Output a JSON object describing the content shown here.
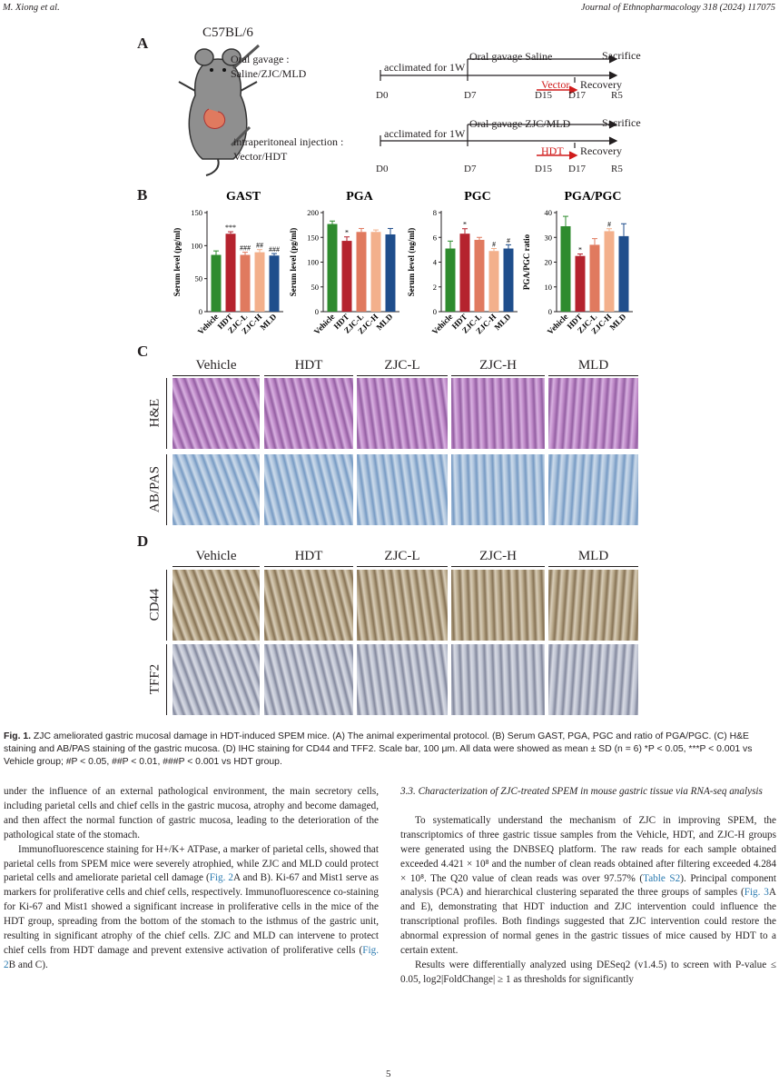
{
  "header": {
    "authors": "M. Xiong et al.",
    "journal": "Journal of Ethnopharmacology 318 (2024) 117075"
  },
  "panelA": {
    "letter": "A",
    "strain": "C57BL/6",
    "oral_gavage_label": "Oral gavage :",
    "oral_gavage_groups": "Saline/ZJC/MLD",
    "ip_label": "intraperitoneal injection :",
    "ip_groups": "Vector/HDT",
    "timeline1": {
      "acclimated": "acclimated for 1W",
      "gavage": "Oral gavage Saline",
      "sacrifice": "Sacrifice",
      "treat": "Vector",
      "recovery": "Recovery"
    },
    "timeline2": {
      "acclimated": "acclimated for 1W",
      "gavage": "Oral gavage ZJC/MLD",
      "sacrifice": "Sacrifice",
      "treat": "HDT",
      "recovery": "Recovery"
    },
    "days": [
      "D0",
      "D7",
      "D15",
      "D17",
      "R5"
    ]
  },
  "panelB": {
    "letter": "B",
    "ylabels": {
      "gast": "Serum level (pg/ml)",
      "pga": "Serum level (pg/ml)",
      "pgc": "Serum level (ng/ml)",
      "ratio": "PGA/PGC ratio"
    }
  },
  "chart_data": [
    {
      "type": "bar",
      "title": "GAST",
      "ylabel": "Serum level (pg/ml)",
      "categories": [
        "Vehicle",
        "HDT",
        "ZJC-L",
        "ZJC-H",
        "MLD"
      ],
      "values": [
        86,
        118,
        86,
        90,
        85
      ],
      "errors": [
        6,
        3,
        4,
        4,
        3
      ],
      "annotations": [
        "",
        "***",
        "###",
        "##",
        "###"
      ],
      "ylim": [
        0,
        150
      ],
      "yticks": [
        0,
        50,
        100,
        150
      ]
    },
    {
      "type": "bar",
      "title": "PGA",
      "ylabel": "Serum level (pg/ml)",
      "categories": [
        "Vehicle",
        "HDT",
        "ZJC-L",
        "ZJC-H",
        "MLD"
      ],
      "values": [
        177,
        143,
        161,
        161,
        156
      ],
      "errors": [
        6,
        8,
        7,
        4,
        12
      ],
      "annotations": [
        "",
        "*",
        "",
        "",
        ""
      ],
      "ylim": [
        0,
        200
      ],
      "yticks": [
        0,
        50,
        100,
        150,
        200
      ]
    },
    {
      "type": "bar",
      "title": "PGC",
      "ylabel": "Serum level (ng/ml)",
      "categories": [
        "Vehicle",
        "HDT",
        "ZJC-L",
        "ZJC-H",
        "MLD"
      ],
      "values": [
        5.1,
        6.3,
        5.8,
        4.9,
        5.1
      ],
      "errors": [
        0.6,
        0.4,
        0.2,
        0.2,
        0.3
      ],
      "annotations": [
        "",
        "*",
        "",
        "#",
        "#"
      ],
      "ylim": [
        0,
        8
      ],
      "yticks": [
        0,
        2,
        4,
        6,
        8
      ]
    },
    {
      "type": "bar",
      "title": "PGA/PGC",
      "ylabel": "PGA/PGC ratio",
      "categories": [
        "Vehicle",
        "HDT",
        "ZJC-L",
        "ZJC-H",
        "MLD"
      ],
      "values": [
        34.5,
        22.5,
        27,
        32.5,
        30.5
      ],
      "errors": [
        4,
        0.8,
        2.5,
        1,
        5
      ],
      "annotations": [
        "",
        "*",
        "",
        "#",
        ""
      ],
      "ylim": [
        0,
        40
      ],
      "yticks": [
        0,
        10,
        20,
        30,
        40
      ]
    }
  ],
  "bar_colors": [
    "#2e8b2e",
    "#b5232e",
    "#e07a5f",
    "#f3b08c",
    "#1f4e8c"
  ],
  "panelC": {
    "letter": "C",
    "groups": [
      "Vehicle",
      "HDT",
      "ZJC-L",
      "ZJC-H",
      "MLD"
    ],
    "rows": [
      "H&E",
      "AB/PAS"
    ]
  },
  "panelD": {
    "letter": "D",
    "groups": [
      "Vehicle",
      "HDT",
      "ZJC-L",
      "ZJC-H",
      "MLD"
    ],
    "rows": [
      "CD44",
      "TFF2"
    ]
  },
  "caption": {
    "label": "Fig. 1.",
    "text": "ZJC ameliorated gastric mucosal damage in HDT-induced SPEM mice. (A) The animal experimental protocol. (B) Serum GAST, PGA, PGC and ratio of PGA/PGC. (C) H&E staining and AB/PAS staining of the gastric mucosa. (D) IHC staining for CD44 and TFF2. Scale bar, 100 μm. All data were showed as mean ± SD (n = 6) *P < 0.05, ***P < 0.001 vs Vehicle group; #P < 0.05, ##P < 0.01, ###P < 0.001 vs HDT group."
  },
  "left_column": {
    "p1": "under the influence of an external pathological environment, the main secretory cells, including parietal cells and chief cells in the gastric mucosa, atrophy and become damaged, and then affect the normal function of gastric mucosa, leading to the deterioration of the pathological state of the stomach.",
    "p2_a": "Immunofluorescence staining for H+/K+ ATPase, a marker of parietal cells, showed that parietal cells from SPEM mice were severely atrophied, while ZJC and MLD could protect parietal cells and ameliorate parietal cell damage (",
    "p2_link1": "Fig. 2",
    "p2_b": "A and B). Ki-67 and Mist1 serve as markers for proliferative cells and chief cells, respectively. Immunofluorescence co-staining for Ki-67 and Mist1 showed a significant increase in proliferative cells in the mice of the HDT group, spreading from the bottom of the stomach to the isthmus of the gastric unit, resulting in significant atrophy of the chief cells. ZJC and MLD can intervene to protect chief cells from HDT damage and prevent extensive activation of proliferative cells (",
    "p2_link2": "Fig. 2",
    "p2_c": "B and C)."
  },
  "right_column": {
    "section": "3.3. Characterization of ZJC-treated SPEM in mouse gastric tissue via RNA-seq analysis",
    "p1_a": "To systematically understand the mechanism of ZJC in improving SPEM, the transcriptomics of three gastric tissue samples from the Vehicle, HDT, and ZJC-H groups were generated using the DNBSEQ platform. The raw reads for each sample obtained exceeded 4.421 × 10⁸ and the number of clean reads obtained after filtering exceeded 4.284 × 10⁸. The Q20 value of clean reads was over 97.57% (",
    "p1_link1": "Table S2",
    "p1_b": "). Principal component analysis (PCA) and hierarchical clustering separated the three groups of samples (",
    "p1_link2": "Fig. 3",
    "p1_c": "A and E), demonstrating that HDT induction and ZJC intervention could influence the transcriptional profiles. Both findings suggested that ZJC intervention could restore the abnormal expression of normal genes in the gastric tissues of mice caused by HDT to a certain extent.",
    "p2": "Results were differentially analyzed using DESeq2 (v1.4.5) to screen with P-value ≤ 0.05, log2|FoldChange| ≥ 1 as thresholds for significantly"
  },
  "page_number": "5"
}
